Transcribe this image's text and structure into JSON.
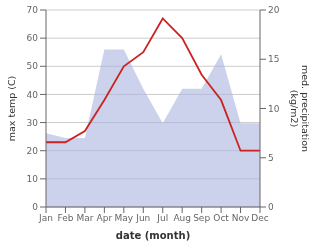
{
  "chart_data": {
    "type": "line",
    "categories": [
      "Jan",
      "Feb",
      "Mar",
      "Apr",
      "May",
      "Jun",
      "Jul",
      "Aug",
      "Sep",
      "Oct",
      "Nov",
      "Dec"
    ],
    "series": [
      {
        "type": "area",
        "axis": "y2",
        "color": "#aab4dd",
        "values": [
          7.5,
          7.0,
          7.0,
          16.0,
          16.0,
          12.0,
          8.5,
          12.0,
          12.0,
          15.5,
          8.5,
          8.5
        ]
      },
      {
        "type": "line",
        "color": "#cc2222",
        "values": [
          23,
          23,
          27,
          38,
          50,
          55,
          67,
          60,
          47,
          38,
          20,
          20
        ]
      }
    ],
    "xlabel": "date (month)",
    "ylabel": "max temp (C)",
    "y2label": "med. precipitation\n(kg/m2)",
    "ylim": [
      0,
      70
    ],
    "yticks": [
      0,
      10,
      20,
      30,
      40,
      50,
      60,
      70
    ],
    "y2lim": [
      0,
      20
    ],
    "y2ticks": [
      0,
      5,
      10,
      15,
      20
    ],
    "grid": true
  }
}
